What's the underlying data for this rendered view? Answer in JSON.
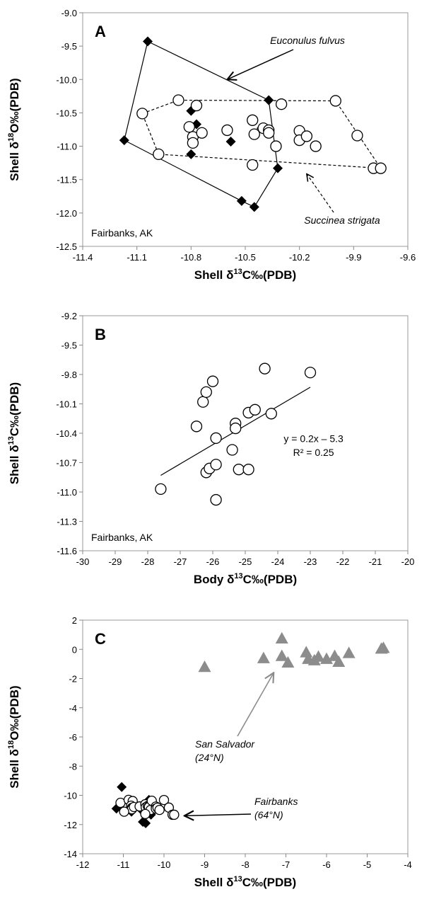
{
  "chart_data": [
    {
      "type": "scatter",
      "panel_label": "A",
      "xlabel": "Shell δ13C‰(PDB)",
      "ylabel": "Shell δ18O‰(PDB)",
      "xlim": [
        -11.4,
        -9.6
      ],
      "ylim": [
        -12.5,
        -9.0
      ],
      "xticks": [
        -11.4,
        -11.1,
        -10.8,
        -10.5,
        -10.2,
        -9.9,
        -9.6
      ],
      "xtick_labels": [
        "-11.4",
        "-11.1",
        "-10.8",
        "-10.5",
        "-10.2",
        "-9.9",
        "-9.6"
      ],
      "yticks": [
        -12.5,
        -12.0,
        -11.5,
        -11.0,
        -10.5,
        -10.0,
        -9.5,
        -9.0
      ],
      "ytick_labels": [
        "-12.5",
        "-12.0",
        "-11.5",
        "-11.0",
        "-10.5",
        "-10.0",
        "-9.5",
        "-9.0"
      ],
      "location_label": "Fairbanks, AK",
      "series": [
        {
          "name": "Euconulus fulvus",
          "marker": "diamond-filled",
          "color": "#000000",
          "points": [
            [
              -11.04,
              -9.43
            ],
            [
              -10.37,
              -10.31
            ],
            [
              -10.32,
              -11.33
            ],
            [
              -10.45,
              -11.91
            ],
            [
              -10.52,
              -11.82
            ],
            [
              -11.17,
              -10.91
            ],
            [
              -10.8,
              -10.47
            ],
            [
              -10.77,
              -10.67
            ],
            [
              -10.8,
              -11.12
            ],
            [
              -10.58,
              -10.93
            ],
            [
              -10.41,
              -10.73
            ]
          ],
          "hull": [
            [
              -11.04,
              -9.43
            ],
            [
              -10.37,
              -10.31
            ],
            [
              -10.32,
              -11.33
            ],
            [
              -10.45,
              -11.91
            ],
            [
              -10.52,
              -11.82
            ],
            [
              -11.17,
              -10.91
            ]
          ]
        },
        {
          "name": "Succinea strigata",
          "marker": "circle-open",
          "color": "#000000",
          "points": [
            [
              -11.07,
              -10.51
            ],
            [
              -10.87,
              -10.31
            ],
            [
              -10.77,
              -10.39
            ],
            [
              -10.81,
              -10.71
            ],
            [
              -10.79,
              -10.86
            ],
            [
              -10.79,
              -10.95
            ],
            [
              -10.74,
              -10.8
            ],
            [
              -10.6,
              -10.76
            ],
            [
              -10.46,
              -10.61
            ],
            [
              -10.45,
              -10.82
            ],
            [
              -10.4,
              -10.73
            ],
            [
              -10.37,
              -10.76
            ],
            [
              -10.37,
              -10.8
            ],
            [
              -10.33,
              -11.0
            ],
            [
              -10.3,
              -10.37
            ],
            [
              -10.2,
              -10.77
            ],
            [
              -10.2,
              -10.91
            ],
            [
              -10.16,
              -10.85
            ],
            [
              -10.11,
              -11.0
            ],
            [
              -10.0,
              -10.32
            ],
            [
              -9.88,
              -10.84
            ],
            [
              -9.79,
              -11.33
            ],
            [
              -9.75,
              -11.33
            ],
            [
              -10.46,
              -11.28
            ],
            [
              -10.98,
              -11.12
            ]
          ],
          "hull": [
            [
              -11.07,
              -10.51
            ],
            [
              -10.87,
              -10.31
            ],
            [
              -10.0,
              -10.32
            ],
            [
              -9.75,
              -11.33
            ],
            [
              -10.98,
              -11.12
            ]
          ]
        }
      ],
      "annotations": [
        {
          "text": "Euconulus fulvus",
          "italic": true,
          "arrow_to": [
            -10.6,
            -10.0
          ]
        },
        {
          "text": "Succinea strigata",
          "italic": true,
          "arrow_to": [
            -10.16,
            -11.35
          ]
        }
      ]
    },
    {
      "type": "scatter",
      "panel_label": "B",
      "xlabel": "Body δ13C‰(PDB)",
      "ylabel": "Shell δ13C‰(PDB)",
      "xlim": [
        -30,
        -20
      ],
      "ylim": [
        -11.6,
        -9.2
      ],
      "xticks": [
        -30,
        -29,
        -28,
        -27,
        -26,
        -25,
        -24,
        -23,
        -22,
        -21,
        -20
      ],
      "xtick_labels": [
        "-30",
        "-29",
        "-28",
        "-27",
        "-26",
        "-25",
        "-24",
        "-23",
        "-22",
        "-21",
        "-20"
      ],
      "yticks": [
        -11.6,
        -11.3,
        -11.0,
        -10.7,
        -10.4,
        -10.1,
        -9.8,
        -9.5,
        -9.2
      ],
      "ytick_labels": [
        "-11.6",
        "-11.3",
        "-11.0",
        "-10.7",
        "-10.4",
        "-10.1",
        "-9.8",
        "-9.5",
        "-9.2"
      ],
      "location_label": "Fairbanks, AK",
      "series": [
        {
          "name": "",
          "marker": "circle-open",
          "color": "#000000",
          "points": [
            [
              -27.6,
              -10.97
            ],
            [
              -26.5,
              -10.33
            ],
            [
              -26.3,
              -10.08
            ],
            [
              -26.2,
              -9.98
            ],
            [
              -26.2,
              -10.8
            ],
            [
              -26.1,
              -10.76
            ],
            [
              -26.0,
              -9.87
            ],
            [
              -25.9,
              -10.72
            ],
            [
              -25.9,
              -10.45
            ],
            [
              -25.9,
              -11.08
            ],
            [
              -25.4,
              -10.57
            ],
            [
              -25.3,
              -10.3
            ],
            [
              -25.3,
              -10.35
            ],
            [
              -25.2,
              -10.77
            ],
            [
              -24.9,
              -10.77
            ],
            [
              -24.9,
              -10.19
            ],
            [
              -24.7,
              -10.16
            ],
            [
              -24.4,
              -9.74
            ],
            [
              -24.2,
              -10.2
            ],
            [
              -23.0,
              -9.78
            ]
          ]
        }
      ],
      "trendline": {
        "x_range": [
          -27.6,
          -23.0
        ],
        "equation": "y = 0.2x – 5.3",
        "r2_label": "R² = 0.25"
      }
    },
    {
      "type": "scatter",
      "panel_label": "C",
      "xlabel": "Shell δ13C‰(PDB)",
      "ylabel": "Shell δ18O‰(PDB)",
      "xlim": [
        -12,
        -4
      ],
      "ylim": [
        -14,
        2
      ],
      "xticks": [
        -12,
        -11,
        -10,
        -9,
        -8,
        -7,
        -6,
        -5,
        -4
      ],
      "xtick_labels": [
        "-12",
        "-11",
        "-10",
        "-9",
        "-8",
        "-7",
        "-6",
        "-5",
        "-4"
      ],
      "yticks": [
        -14,
        -12,
        -10,
        -8,
        -6,
        -4,
        -2,
        0,
        2
      ],
      "ytick_labels": [
        "-14",
        "-12",
        "-10",
        "-8",
        "-6",
        "-4",
        "-2",
        "0",
        "2"
      ],
      "series": [
        {
          "name": "San Salvador",
          "marker": "triangle-filled",
          "color": "#8c8c8c",
          "points": [
            [
              -9.0,
              -1.2
            ],
            [
              -7.55,
              -0.6
            ],
            [
              -7.1,
              0.75
            ],
            [
              -7.1,
              -0.45
            ],
            [
              -6.95,
              -0.9
            ],
            [
              -6.5,
              -0.2
            ],
            [
              -6.45,
              -0.65
            ],
            [
              -6.3,
              -0.75
            ],
            [
              -6.2,
              -0.5
            ],
            [
              -6.0,
              -0.65
            ],
            [
              -5.8,
              -0.45
            ],
            [
              -5.7,
              -0.85
            ],
            [
              -5.45,
              -0.25
            ],
            [
              -4.65,
              0.05
            ],
            [
              -4.6,
              0.1
            ]
          ]
        },
        {
          "name": "Fairbanks",
          "marker": "diamond-filled",
          "color": "#000000",
          "points": [
            [
              -11.04,
              -9.43
            ],
            [
              -10.37,
              -10.31
            ],
            [
              -10.32,
              -11.33
            ],
            [
              -10.45,
              -11.91
            ],
            [
              -10.52,
              -11.82
            ],
            [
              -11.17,
              -10.91
            ],
            [
              -10.8,
              -10.47
            ],
            [
              -10.77,
              -10.67
            ],
            [
              -10.8,
              -11.12
            ],
            [
              -10.58,
              -10.93
            ],
            [
              -10.41,
              -10.73
            ]
          ]
        },
        {
          "name": "Fairbanks",
          "marker": "circle-open",
          "color": "#000000",
          "points": [
            [
              -11.07,
              -10.51
            ],
            [
              -10.87,
              -10.31
            ],
            [
              -10.77,
              -10.39
            ],
            [
              -10.81,
              -10.71
            ],
            [
              -10.79,
              -10.86
            ],
            [
              -10.79,
              -10.95
            ],
            [
              -10.74,
              -10.8
            ],
            [
              -10.6,
              -10.76
            ],
            [
              -10.46,
              -10.61
            ],
            [
              -10.45,
              -10.82
            ],
            [
              -10.4,
              -10.73
            ],
            [
              -10.37,
              -10.76
            ],
            [
              -10.37,
              -10.8
            ],
            [
              -10.33,
              -11.0
            ],
            [
              -10.3,
              -10.37
            ],
            [
              -10.2,
              -10.77
            ],
            [
              -10.2,
              -10.91
            ],
            [
              -10.16,
              -10.85
            ],
            [
              -10.11,
              -11.0
            ],
            [
              -10.0,
              -10.32
            ],
            [
              -9.88,
              -10.84
            ],
            [
              -9.79,
              -11.33
            ],
            [
              -9.75,
              -11.33
            ],
            [
              -10.46,
              -11.28
            ],
            [
              -10.98,
              -11.12
            ]
          ]
        }
      ],
      "annotations": [
        {
          "text": "San Salvador",
          "sub": "(24°N)",
          "italic": true,
          "color": "#8c8c8c",
          "arrow_to": [
            -7.3,
            -1.6
          ]
        },
        {
          "text": "Fairbanks",
          "sub": "(64°N)",
          "italic": true,
          "color": "#000000",
          "arrow_to": [
            -9.5,
            -11.4
          ]
        }
      ]
    }
  ]
}
